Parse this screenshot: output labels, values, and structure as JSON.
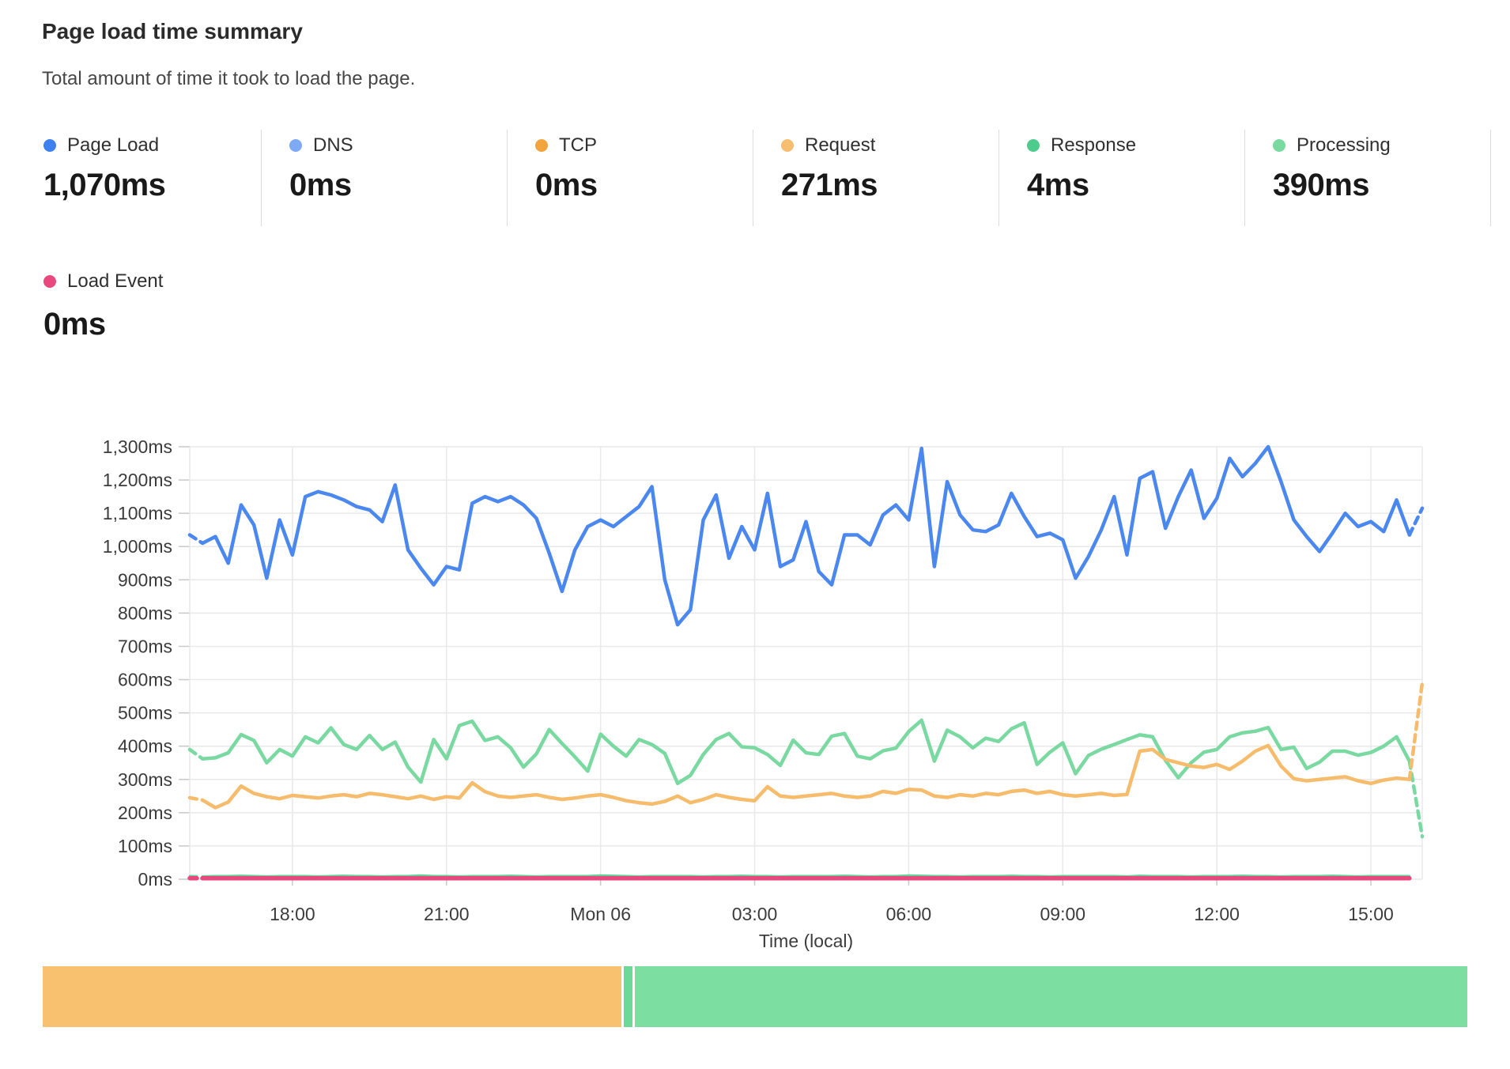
{
  "header": {
    "title": "Page load time summary",
    "subtitle": "Total amount of time it took to load the page."
  },
  "stats": [
    {
      "label": "Page Load",
      "value": "1,070ms",
      "color": "#3e80f0"
    },
    {
      "label": "DNS",
      "value": "0ms",
      "color": "#7ea9f5"
    },
    {
      "label": "TCP",
      "value": "0ms",
      "color": "#f2a33c"
    },
    {
      "label": "Request",
      "value": "271ms",
      "color": "#f6be70"
    },
    {
      "label": "Response",
      "value": "4ms",
      "color": "#4fcb8d"
    },
    {
      "label": "Processing",
      "value": "390ms",
      "color": "#79daa1"
    },
    {
      "label": "Load Event",
      "value": "0ms",
      "color": "#e9487e"
    }
  ],
  "chart_data": {
    "type": "line",
    "xlabel": "Time (local)",
    "x_span_hours": 24,
    "x_step_hours": 0.25,
    "x_start": "Sun 16:00",
    "ylim": [
      0,
      1300
    ],
    "grid": true,
    "legend_position": "none",
    "y_ticks": [
      {
        "value": 0,
        "label": "0ms"
      },
      {
        "value": 100,
        "label": "100ms"
      },
      {
        "value": 200,
        "label": "200ms"
      },
      {
        "value": 300,
        "label": "300ms"
      },
      {
        "value": 400,
        "label": "400ms"
      },
      {
        "value": 500,
        "label": "500ms"
      },
      {
        "value": 600,
        "label": "600ms"
      },
      {
        "value": 700,
        "label": "700ms"
      },
      {
        "value": 800,
        "label": "800ms"
      },
      {
        "value": 900,
        "label": "900ms"
      },
      {
        "value": 1000,
        "label": "1,000ms"
      },
      {
        "value": 1100,
        "label": "1,100ms"
      },
      {
        "value": 1200,
        "label": "1,200ms"
      },
      {
        "value": 1300,
        "label": "1,300ms"
      }
    ],
    "x_ticks": [
      {
        "t": 2,
        "label": "18:00"
      },
      {
        "t": 5,
        "label": "21:00"
      },
      {
        "t": 8,
        "label": "Mon 06"
      },
      {
        "t": 11,
        "label": "03:00"
      },
      {
        "t": 14,
        "label": "06:00"
      },
      {
        "t": 17,
        "label": "09:00"
      },
      {
        "t": 20,
        "label": "12:00"
      },
      {
        "t": 23,
        "label": "15:00"
      }
    ],
    "series": [
      {
        "name": "Processing",
        "color": "#79d9a1",
        "width": 4.5,
        "dash_start": true,
        "dash_end": true,
        "values": [
          390,
          362,
          365,
          380,
          435,
          417,
          350,
          390,
          370,
          428,
          410,
          455,
          405,
          390,
          432,
          390,
          412,
          337,
          292,
          420,
          362,
          462,
          475,
          417,
          428,
          395,
          337,
          377,
          450,
          408,
          368,
          325,
          436,
          400,
          370,
          420,
          405,
          378,
          288,
          312,
          375,
          420,
          438,
          398,
          395,
          375,
          342,
          418,
          380,
          375,
          430,
          438,
          370,
          362,
          386,
          394,
          444,
          478,
          355,
          448,
          428,
          395,
          424,
          414,
          452,
          470,
          345,
          382,
          410,
          317,
          372,
          391,
          405,
          420,
          434,
          428,
          357,
          305,
          350,
          382,
          390,
          428,
          440,
          445,
          456,
          390,
          397,
          333,
          352,
          385,
          385,
          373,
          381,
          400,
          428,
          355,
          128
        ]
      },
      {
        "name": "Request",
        "color": "#f6bc6c",
        "width": 4.5,
        "dash_start": true,
        "dash_end": true,
        "values": [
          245,
          238,
          215,
          232,
          280,
          258,
          248,
          242,
          252,
          248,
          244,
          250,
          254,
          248,
          258,
          254,
          248,
          242,
          250,
          240,
          248,
          244,
          290,
          263,
          250,
          246,
          250,
          254,
          246,
          240,
          244,
          250,
          254,
          246,
          236,
          230,
          226,
          234,
          250,
          230,
          240,
          254,
          246,
          240,
          236,
          278,
          250,
          246,
          250,
          254,
          258,
          250,
          246,
          250,
          264,
          258,
          270,
          268,
          250,
          246,
          254,
          250,
          258,
          254,
          264,
          268,
          258,
          264,
          254,
          250,
          254,
          258,
          252,
          255,
          385,
          390,
          360,
          350,
          340,
          336,
          345,
          330,
          355,
          385,
          402,
          340,
          302,
          296,
          300,
          304,
          308,
          296,
          288,
          298,
          304,
          300,
          590
        ]
      },
      {
        "name": "Response",
        "color": "#5fd595",
        "width": 2.5,
        "dash_start": true,
        "dash_end": false,
        "values": [
          10,
          9,
          10,
          10,
          11,
          10,
          9,
          10,
          10,
          10,
          9,
          10,
          11,
          10,
          10,
          9,
          10,
          10,
          12,
          10,
          10,
          9,
          10,
          10,
          10,
          11,
          10,
          9,
          10,
          10,
          10,
          10,
          12,
          11,
          10,
          9,
          10,
          10,
          10,
          10,
          9,
          10,
          10,
          11,
          10,
          10,
          9,
          10,
          10,
          10,
          10,
          11,
          10,
          9,
          10,
          10,
          12,
          11,
          10,
          10,
          9,
          10,
          10,
          10,
          11,
          10,
          10,
          9,
          10,
          10,
          10,
          10,
          10,
          9,
          11,
          10,
          10,
          10,
          9,
          10,
          10,
          10,
          11,
          10,
          10,
          9,
          10,
          10,
          10,
          11,
          10,
          9,
          10,
          10,
          10,
          10
        ]
      },
      {
        "name": "Load Event",
        "color": "#e8487e",
        "width": 5.5,
        "dash_start": true,
        "dash_end": false,
        "values": [
          3,
          3,
          3,
          3,
          3,
          3,
          3,
          3,
          3,
          3,
          3,
          3,
          3,
          3,
          3,
          3,
          3,
          3,
          3,
          3,
          3,
          3,
          3,
          3,
          3,
          3,
          3,
          3,
          3,
          3,
          3,
          3,
          3,
          3,
          3,
          3,
          3,
          3,
          3,
          3,
          3,
          3,
          3,
          3,
          3,
          3,
          3,
          3,
          3,
          3,
          3,
          3,
          3,
          3,
          3,
          3,
          3,
          3,
          3,
          3,
          3,
          3,
          3,
          3,
          3,
          3,
          3,
          3,
          3,
          3,
          3,
          3,
          3,
          3,
          3,
          3,
          3,
          3,
          3,
          3,
          3,
          3,
          3,
          3,
          3,
          3,
          3,
          3,
          3,
          3,
          3,
          3,
          3,
          3,
          3,
          3
        ]
      },
      {
        "name": "Page Load",
        "color": "#4a87ee",
        "width": 4.5,
        "dash_start": true,
        "dash_end": true,
        "values": [
          1035,
          1010,
          1030,
          950,
          1125,
          1065,
          905,
          1080,
          975,
          1150,
          1165,
          1155,
          1140,
          1120,
          1110,
          1075,
          1185,
          990,
          935,
          885,
          940,
          930,
          1130,
          1150,
          1135,
          1150,
          1125,
          1085,
          980,
          865,
          990,
          1060,
          1080,
          1060,
          1090,
          1120,
          1180,
          900,
          765,
          810,
          1080,
          1155,
          965,
          1060,
          990,
          1160,
          940,
          960,
          1075,
          925,
          885,
          1035,
          1035,
          1005,
          1095,
          1125,
          1080,
          1295,
          940,
          1195,
          1095,
          1050,
          1045,
          1065,
          1160,
          1090,
          1030,
          1040,
          1020,
          905,
          970,
          1050,
          1150,
          975,
          1205,
          1225,
          1055,
          1150,
          1230,
          1085,
          1145,
          1265,
          1210,
          1250,
          1300,
          1195,
          1080,
          1030,
          985,
          1040,
          1100,
          1060,
          1075,
          1045,
          1140,
          1035,
          1115
        ]
      }
    ]
  },
  "bottom_bar": {
    "segments": [
      {
        "name": "Request",
        "value": 271,
        "color": "#f8c170"
      },
      {
        "name": "Response",
        "value": 4,
        "color": "#6cd996"
      },
      {
        "name": "Processing",
        "value": 390,
        "color": "#7cdfa1"
      }
    ]
  }
}
